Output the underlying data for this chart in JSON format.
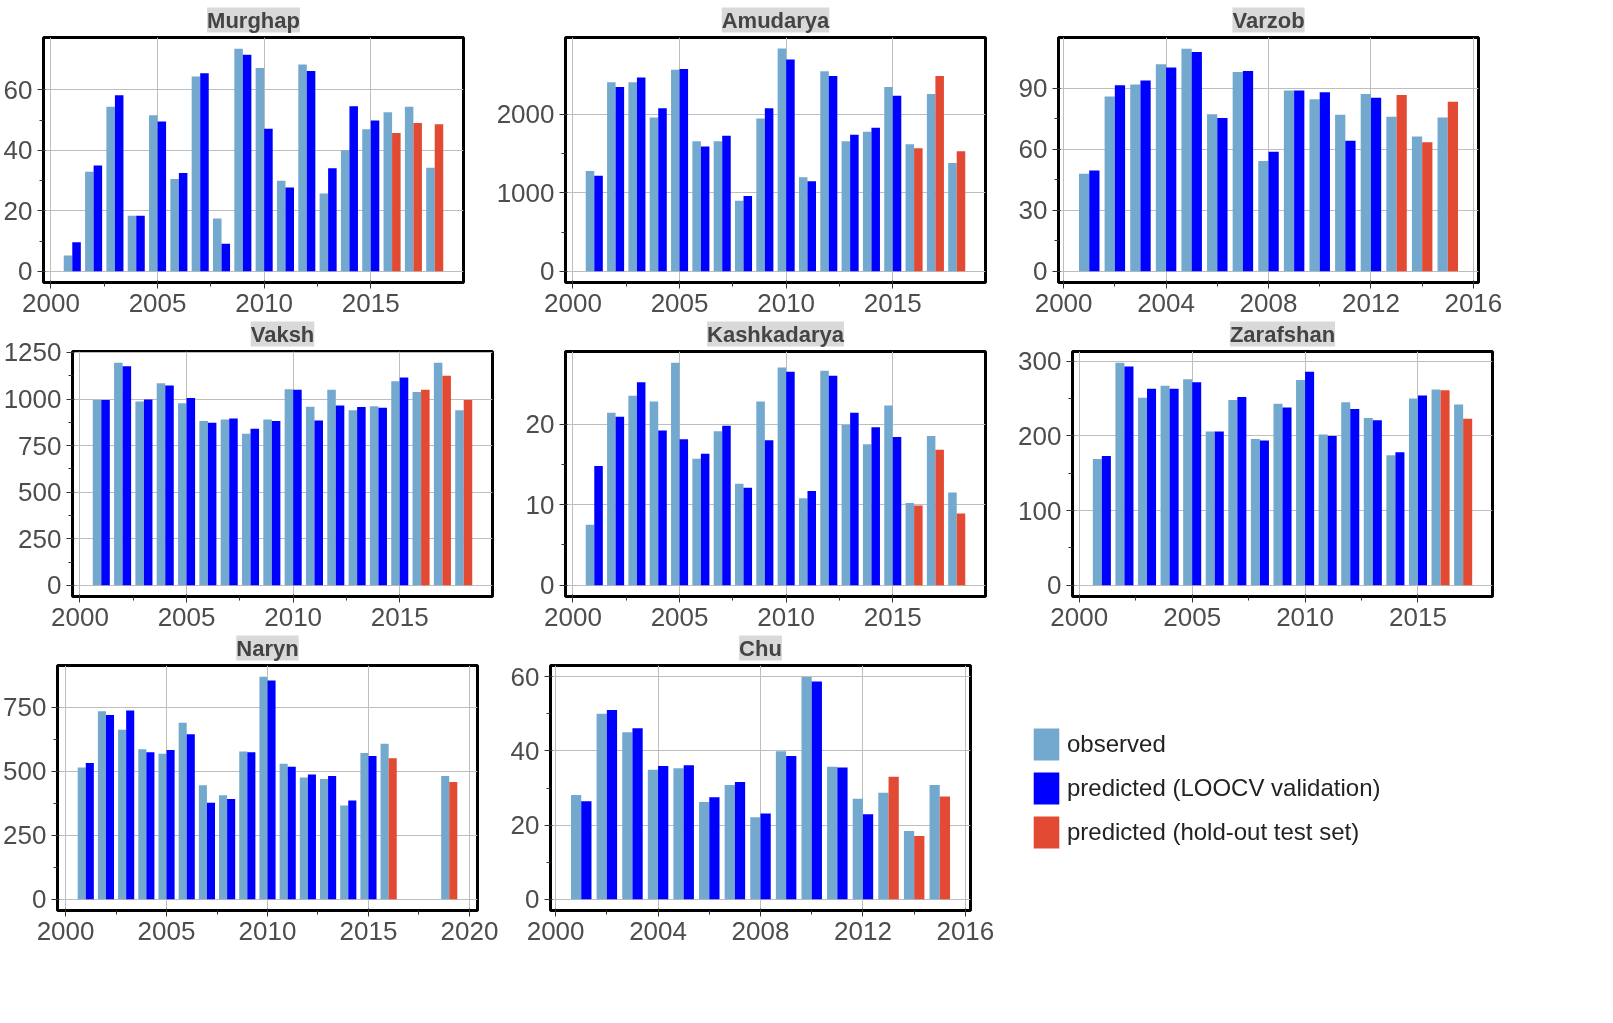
{
  "chart_data": [
    {
      "type": "bar",
      "title": "Murghap",
      "x": [
        2001,
        2002,
        2003,
        2004,
        2005,
        2006,
        2007,
        2008,
        2009,
        2010,
        2011,
        2012,
        2013,
        2014,
        2015,
        2016,
        2017,
        2018
      ],
      "xlim": [
        1999.65,
        2019.35
      ],
      "xticks": [
        2000,
        2005,
        2010,
        2015
      ],
      "ylim": [
        -3.7,
        77.3
      ],
      "yticks": [
        0,
        20,
        40,
        60
      ],
      "grid": true,
      "series": [
        {
          "color": "#74a9cf",
          "values": [
            5.2,
            32.9,
            54.4,
            18.4,
            51.6,
            30.5,
            64.4,
            17.5,
            73.6,
            67.2,
            29.9,
            68.4,
            25.7,
            40,
            47,
            52.6,
            54.4,
            34.2
          ]
        },
        {
          "color": "#0000ff",
          "values": [
            9.6,
            35,
            58.2,
            18.4,
            49.5,
            32.5,
            65.5,
            9.1,
            71.6,
            47.1,
            27.7,
            66.2,
            34.1,
            54.6,
            49.9,
            null,
            null,
            null
          ]
        },
        {
          "color": "#e34a33",
          "values": [
            null,
            null,
            null,
            null,
            null,
            null,
            null,
            null,
            null,
            null,
            null,
            null,
            null,
            null,
            null,
            45.7,
            49,
            48.6
          ]
        }
      ]
    },
    {
      "type": "bar",
      "title": "Amudarya",
      "x": [
        2001,
        2002,
        2003,
        2004,
        2005,
        2006,
        2007,
        2008,
        2009,
        2010,
        2011,
        2012,
        2013,
        2014,
        2015,
        2016,
        2017,
        2018
      ],
      "xlim": [
        1999.65,
        2019.35
      ],
      "xticks": [
        2000,
        2005,
        2010,
        2015
      ],
      "ylim": [
        -142,
        2981
      ],
      "yticks": [
        0,
        1000,
        2000
      ],
      "grid": true,
      "series": [
        {
          "color": "#74a9cf",
          "values": [
            1280,
            2410,
            2410,
            1960,
            2570,
            1660,
            1660,
            900,
            1950,
            2840,
            1200,
            2550,
            1660,
            1780,
            2350,
            1620,
            2260,
            1380
          ]
        },
        {
          "color": "#0000ff",
          "values": [
            1220,
            2350,
            2470,
            2080,
            2580,
            1590,
            1730,
            960,
            2080,
            2700,
            1150,
            2490,
            1740,
            1830,
            2240,
            null,
            null,
            null
          ]
        },
        {
          "color": "#e34a33",
          "values": [
            null,
            null,
            null,
            null,
            null,
            null,
            null,
            null,
            null,
            null,
            null,
            null,
            null,
            null,
            null,
            1570,
            2490,
            1530
          ]
        }
      ]
    },
    {
      "type": "bar",
      "title": "Varzob",
      "x": [
        2001,
        2002,
        2003,
        2004,
        2005,
        2006,
        2007,
        2008,
        2009,
        2010,
        2011,
        2012,
        2013,
        2014,
        2015
      ],
      "xlim": [
        1999.8,
        2016.2
      ],
      "xticks": [
        2000,
        2004,
        2008,
        2012,
        2016
      ],
      "ylim": [
        -5.5,
        114.9
      ],
      "yticks": [
        0,
        30,
        60,
        90
      ],
      "grid": true,
      "series": [
        {
          "color": "#74a9cf",
          "values": [
            48,
            85.9,
            91.8,
            101.7,
            109.4,
            77.2,
            97.9,
            54.2,
            88.9,
            84.6,
            76.9,
            87.1,
            76,
            66.3,
            75.6
          ]
        },
        {
          "color": "#0000ff",
          "values": [
            49.6,
            91.4,
            93.8,
            100.1,
            107.8,
            75.4,
            98.4,
            58.7,
            88.9,
            88,
            64.1,
            85.3,
            null,
            null,
            null
          ]
        },
        {
          "color": "#e34a33",
          "values": [
            null,
            null,
            null,
            null,
            null,
            null,
            null,
            null,
            null,
            null,
            null,
            null,
            86.6,
            63.4,
            83.3
          ]
        }
      ]
    },
    {
      "type": "bar",
      "title": "Vaksh",
      "x": [
        2001,
        2002,
        2003,
        2004,
        2005,
        2006,
        2007,
        2008,
        2009,
        2010,
        2011,
        2012,
        2013,
        2014,
        2015,
        2016,
        2017,
        2018
      ],
      "xlim": [
        1999.65,
        2019.35
      ],
      "xticks": [
        2000,
        2005,
        2010,
        2015
      ],
      "ylim": [
        -60,
        1255
      ],
      "yticks": [
        0,
        250,
        500,
        750,
        1000,
        1250
      ],
      "grid": true,
      "series": [
        {
          "color": "#74a9cf",
          "values": [
            995,
            1194,
            987,
            1085,
            977,
            882,
            890,
            813,
            890,
            1052,
            959,
            1050,
            939,
            961,
            1095,
            1038,
            1194,
            939
          ]
        },
        {
          "color": "#0000ff",
          "values": [
            995,
            1176,
            997,
            1072,
            1005,
            872,
            896,
            841,
            882,
            1050,
            884,
            965,
            957,
            953,
            1115,
            null,
            null,
            null
          ]
        },
        {
          "color": "#e34a33",
          "values": [
            null,
            null,
            null,
            null,
            null,
            null,
            null,
            null,
            null,
            null,
            null,
            null,
            null,
            null,
            null,
            1050,
            1125,
            995
          ]
        }
      ]
    },
    {
      "type": "bar",
      "title": "Kashkadarya",
      "x": [
        2001,
        2002,
        2003,
        2004,
        2005,
        2006,
        2007,
        2008,
        2009,
        2010,
        2011,
        2012,
        2013,
        2014,
        2015,
        2016,
        2017,
        2018
      ],
      "xlim": [
        1999.65,
        2019.35
      ],
      "xticks": [
        2000,
        2005,
        2010,
        2015
      ],
      "ylim": [
        -1.4,
        29
      ],
      "yticks": [
        0,
        10,
        20
      ],
      "grid": true,
      "series": [
        {
          "color": "#74a9cf",
          "values": [
            7.5,
            21.4,
            23.5,
            22.8,
            27.6,
            15.7,
            19.1,
            12.6,
            22.8,
            27,
            10.8,
            26.6,
            19.9,
            17.5,
            22.3,
            10.2,
            18.5,
            11.5
          ]
        },
        {
          "color": "#0000ff",
          "values": [
            14.8,
            20.9,
            25.2,
            19.2,
            18.1,
            16.3,
            19.8,
            12.1,
            18,
            26.5,
            11.7,
            26,
            21.4,
            19.6,
            18.4,
            null,
            null,
            null
          ]
        },
        {
          "color": "#e34a33",
          "values": [
            null,
            null,
            null,
            null,
            null,
            null,
            null,
            null,
            null,
            null,
            null,
            null,
            null,
            null,
            null,
            9.9,
            16.8,
            8.9
          ]
        }
      ]
    },
    {
      "type": "bar",
      "title": "Zarafshan",
      "x": [
        2001,
        2002,
        2003,
        2004,
        2005,
        2006,
        2007,
        2008,
        2009,
        2010,
        2011,
        2012,
        2013,
        2014,
        2015,
        2016,
        2017
      ],
      "xlim": [
        1999.7,
        2018.3
      ],
      "xticks": [
        2000,
        2005,
        2010,
        2015
      ],
      "ylim": [
        -15,
        313
      ],
      "yticks": [
        0,
        100,
        200,
        300
      ],
      "grid": true,
      "series": [
        {
          "color": "#74a9cf",
          "values": [
            169,
            298,
            251,
            267,
            276,
            206,
            248,
            196,
            243,
            275,
            202,
            245,
            224,
            174,
            250,
            262,
            242
          ]
        },
        {
          "color": "#0000ff",
          "values": [
            173,
            293,
            263,
            263,
            272,
            206,
            252,
            194,
            238,
            286,
            200,
            236,
            221,
            178,
            254,
            null,
            null
          ]
        },
        {
          "color": "#e34a33",
          "values": [
            null,
            null,
            null,
            null,
            null,
            null,
            null,
            null,
            null,
            null,
            null,
            null,
            null,
            null,
            null,
            261,
            223
          ]
        }
      ]
    },
    {
      "type": "bar",
      "title": "Naryn",
      "x": [
        2001,
        2002,
        2003,
        2004,
        2005,
        2006,
        2007,
        2008,
        2009,
        2010,
        2011,
        2012,
        2013,
        2014,
        2015,
        2016,
        2017,
        2018,
        2019
      ],
      "xlim": [
        1999.6,
        2020.4
      ],
      "xticks": [
        2000,
        2005,
        2010,
        2015,
        2020
      ],
      "ylim": [
        -44,
        914
      ],
      "yticks": [
        0,
        250,
        500,
        750
      ],
      "grid": true,
      "series": [
        {
          "color": "#74a9cf",
          "values": [
            515,
            735,
            663,
            587,
            569,
            690,
            446,
            407,
            578,
            870,
            530,
            476,
            470,
            367,
            572,
            608,
            null,
            null,
            482
          ]
        },
        {
          "color": "#0000ff",
          "values": [
            533,
            720,
            738,
            575,
            584,
            645,
            377,
            392,
            575,
            855,
            518,
            488,
            482,
            386,
            560,
            null,
            null,
            null,
            null
          ]
        },
        {
          "color": "#e34a33",
          "values": [
            null,
            null,
            null,
            null,
            null,
            null,
            null,
            null,
            null,
            null,
            null,
            null,
            null,
            null,
            null,
            551,
            null,
            null,
            458
          ]
        }
      ]
    },
    {
      "type": "bar",
      "title": "Chu",
      "x": [
        2001,
        2002,
        2003,
        2004,
        2005,
        2006,
        2007,
        2008,
        2009,
        2010,
        2011,
        2012,
        2013,
        2014,
        2015
      ],
      "xlim": [
        1999.8,
        2016.2
      ],
      "xticks": [
        2000,
        2004,
        2008,
        2012,
        2016
      ],
      "ylim": [
        -3,
        63
      ],
      "yticks": [
        0,
        20,
        40,
        60
      ],
      "grid": true,
      "legend": "right",
      "series": [
        {
          "name": "observed",
          "color": "#74a9cf",
          "values": [
            28.1,
            50,
            45,
            34.9,
            35.3,
            26.2,
            30.8,
            22.1,
            39.9,
            59.9,
            35.7,
            27.1,
            28.7,
            18.4,
            30.8
          ]
        },
        {
          "name": "predicted (LOOCV validation)",
          "color": "#0000ff",
          "values": [
            26.4,
            51,
            46.1,
            35.9,
            36.1,
            27.5,
            31.6,
            23.1,
            38.6,
            58.7,
            35.5,
            22.9,
            null,
            null,
            null
          ]
        },
        {
          "name": "predicted (hold-out test set)",
          "color": "#e34a33",
          "values": [
            null,
            null,
            null,
            null,
            null,
            null,
            null,
            null,
            null,
            null,
            null,
            null,
            33,
            17.1,
            27.7
          ]
        }
      ]
    }
  ]
}
